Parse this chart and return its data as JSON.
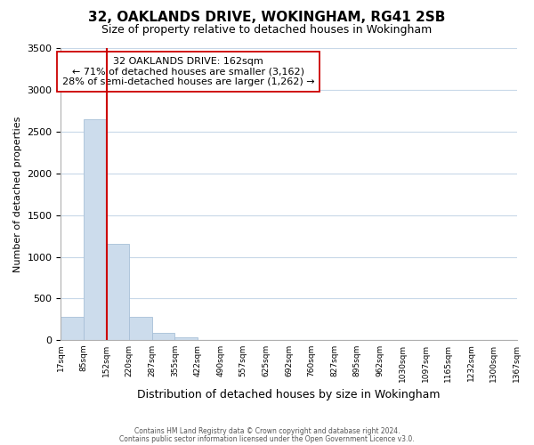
{
  "title": "32, OAKLANDS DRIVE, WOKINGHAM, RG41 2SB",
  "subtitle": "Size of property relative to detached houses in Wokingham",
  "bar_values": [
    280,
    2650,
    1150,
    285,
    85,
    35,
    0,
    0,
    0,
    0,
    0,
    0,
    0,
    0,
    0,
    0,
    0,
    0,
    0,
    0
  ],
  "bin_labels": [
    "17sqm",
    "85sqm",
    "152sqm",
    "220sqm",
    "287sqm",
    "355sqm",
    "422sqm",
    "490sqm",
    "557sqm",
    "625sqm",
    "692sqm",
    "760sqm",
    "827sqm",
    "895sqm",
    "962sqm",
    "1030sqm",
    "1097sqm",
    "1165sqm",
    "1232sqm",
    "1300sqm",
    "1367sqm"
  ],
  "bar_color": "#ccdcec",
  "bar_edge_color": "#a8c0d8",
  "vline_color": "#cc0000",
  "ylabel": "Number of detached properties",
  "xlabel": "Distribution of detached houses by size in Wokingham",
  "ylim": [
    0,
    3500
  ],
  "yticks": [
    0,
    500,
    1000,
    1500,
    2000,
    2500,
    3000,
    3500
  ],
  "annotation_box_title": "32 OAKLANDS DRIVE: 162sqm",
  "annotation_line1": "← 71% of detached houses are smaller (3,162)",
  "annotation_line2": "28% of semi-detached houses are larger (1,262) →",
  "footer1": "Contains HM Land Registry data © Crown copyright and database right 2024.",
  "footer2": "Contains public sector information licensed under the Open Government Licence v3.0.",
  "background_color": "#ffffff",
  "grid_color": "#c8d8e8",
  "vline_bar_index": 2
}
